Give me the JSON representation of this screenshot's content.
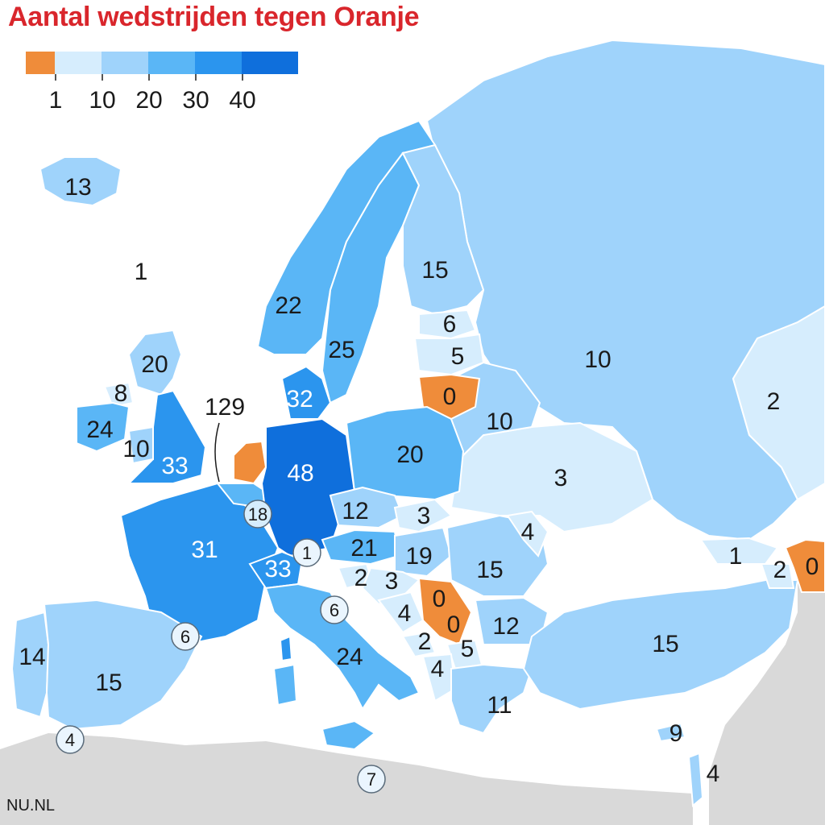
{
  "title": "Aantal wedstrijden tegen Oranje",
  "source": "NU.NL",
  "legend": {
    "swatches": [
      "#ef8c3a",
      "#d6edfd",
      "#9fd3fb",
      "#5ab6f6",
      "#2b95ee",
      "#0f6fdc"
    ],
    "ticks": [
      "1",
      "10",
      "20",
      "30",
      "40"
    ]
  },
  "colors": {
    "zero": "#ef8c3a",
    "lvl1": "#d6edfd",
    "lvl2": "#9fd3fb",
    "lvl3": "#5ab6f6",
    "lvl4": "#2b95ee",
    "lvl5": "#0f6fdc",
    "netherlands": "#ef8c3a",
    "sea": "#ffffff",
    "non_europe": "#d9d9d9"
  },
  "countries": [
    {
      "name": "Iceland",
      "value": "13"
    },
    {
      "name": "Faroe Islands",
      "value": "1"
    },
    {
      "name": "Norway",
      "value": "22"
    },
    {
      "name": "Sweden",
      "value": "25"
    },
    {
      "name": "Finland",
      "value": "15"
    },
    {
      "name": "Estonia",
      "value": "6"
    },
    {
      "name": "Latvia",
      "value": "5"
    },
    {
      "name": "Lithuania",
      "value": "0"
    },
    {
      "name": "Russia",
      "value": "10"
    },
    {
      "name": "Kazakhstan",
      "value": "2"
    },
    {
      "name": "Scotland",
      "value": "20"
    },
    {
      "name": "Northern Ireland",
      "value": "8"
    },
    {
      "name": "Ireland",
      "value": "24"
    },
    {
      "name": "Wales",
      "value": "10"
    },
    {
      "name": "England",
      "value": "33"
    },
    {
      "name": "Denmark",
      "value": "32"
    },
    {
      "name": "Belarus",
      "value": "10"
    },
    {
      "name": "Poland",
      "value": "20"
    },
    {
      "name": "Germany",
      "value": "48"
    },
    {
      "name": "Netherlands",
      "value": "129"
    },
    {
      "name": "Belgium",
      "value": "18"
    },
    {
      "name": "Luxembourg",
      "value": "1"
    },
    {
      "name": "Ukraine",
      "value": "3"
    },
    {
      "name": "Czechia",
      "value": "12"
    },
    {
      "name": "Slovakia",
      "value": "3"
    },
    {
      "name": "Moldova",
      "value": "4"
    },
    {
      "name": "France",
      "value": "31"
    },
    {
      "name": "Austria",
      "value": "21"
    },
    {
      "name": "Hungary",
      "value": "19"
    },
    {
      "name": "Romania",
      "value": "15"
    },
    {
      "name": "Liechtenstein",
      "value": "1"
    },
    {
      "name": "Georgia",
      "value": "1"
    },
    {
      "name": "Azerbaijan",
      "value": "0"
    },
    {
      "name": "Armenia",
      "value": "2"
    },
    {
      "name": "Switzerland",
      "value": "33"
    },
    {
      "name": "Slovenia",
      "value": "2"
    },
    {
      "name": "Croatia",
      "value": "3"
    },
    {
      "name": "Serbia",
      "value": "0"
    },
    {
      "name": "San Marino",
      "value": "6"
    },
    {
      "name": "Bosnia",
      "value": "4"
    },
    {
      "name": "Kosovo",
      "value": "0"
    },
    {
      "name": "Bulgaria",
      "value": "12"
    },
    {
      "name": "Andorra",
      "value": "6"
    },
    {
      "name": "Montenegro",
      "value": "2"
    },
    {
      "name": "North Macedonia",
      "value": "5"
    },
    {
      "name": "Turkey",
      "value": "15"
    },
    {
      "name": "Portugal",
      "value": "14"
    },
    {
      "name": "Spain",
      "value": "15"
    },
    {
      "name": "Italy",
      "value": "24"
    },
    {
      "name": "Albania",
      "value": "4"
    },
    {
      "name": "Greece",
      "value": "11"
    },
    {
      "name": "Cyprus",
      "value": "9"
    },
    {
      "name": "Gibraltar",
      "value": "4"
    },
    {
      "name": "Malta",
      "value": "7"
    },
    {
      "name": "Israel",
      "value": "4"
    }
  ]
}
